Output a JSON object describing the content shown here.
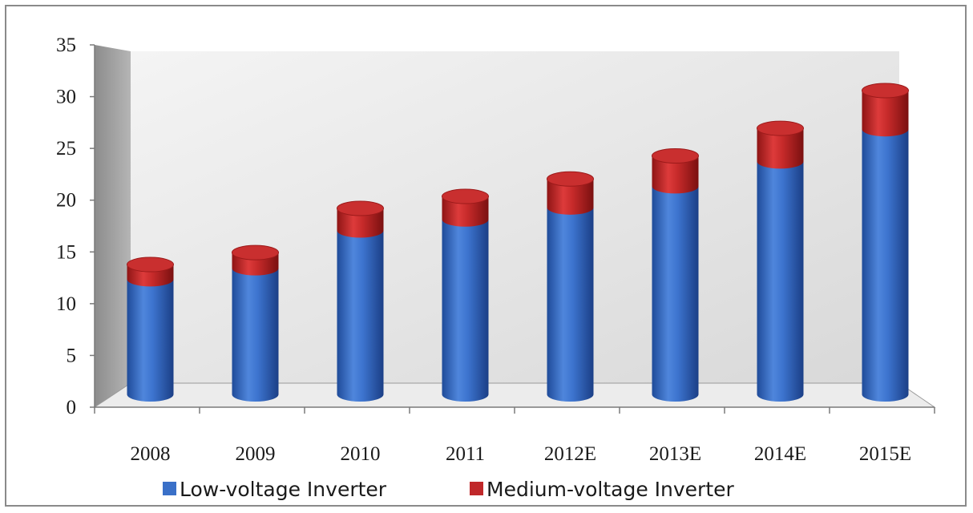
{
  "chart_data": {
    "type": "bar",
    "stacked": true,
    "categories": [
      "2008",
      "2009",
      "2010",
      "2011",
      "2012E",
      "2013E",
      "2014E",
      "2015E"
    ],
    "series": [
      {
        "name": "Low-voltage Inverter",
        "values": [
          12.5,
          13.7,
          17.8,
          19.0,
          20.3,
          22.6,
          25.3,
          28.8
        ],
        "color": "#3a70c8"
      },
      {
        "name": "Medium-voltage Inverter",
        "values": [
          1.6,
          1.7,
          2.4,
          2.5,
          3.1,
          3.3,
          3.6,
          4.2
        ],
        "color": "#c0282a"
      }
    ],
    "yticks": [
      "0",
      "5",
      "10",
      "15",
      "20",
      "25",
      "30",
      "35"
    ],
    "ylim": [
      0,
      35
    ],
    "grid": false,
    "legend_position": "bottom"
  }
}
